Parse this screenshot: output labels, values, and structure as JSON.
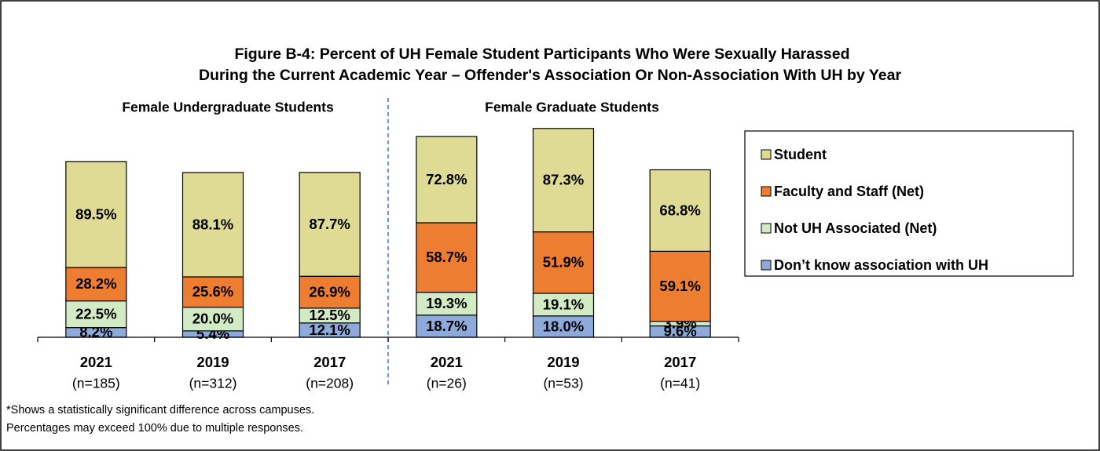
{
  "chart_data": {
    "type": "stacked_bar",
    "title": [
      "Figure B-4:  Percent of UH Female Student Participants Who Were Sexually Harassed",
      "During the Current Academic Year – Offender's Association Or Non-Association With UH by Year"
    ],
    "group_labels": [
      "Female Undergraduate Students",
      "Female Graduate Students"
    ],
    "categories": [
      "2021",
      "2019",
      "2017",
      "2021",
      "2019",
      "2017"
    ],
    "category_notes": [
      "(n=185)",
      "(n=312)",
      "(n=208)",
      "(n=26)",
      "(n=53)",
      "(n=41)"
    ],
    "series": [
      {
        "name": "Don’t know association with UH",
        "color": "#8eaadb",
        "values": [
          8.2,
          5.4,
          12.1,
          18.7,
          18.0,
          9.6
        ],
        "value_labels": [
          "8.2%",
          "5.4%",
          "12.1%",
          "18.7%",
          "18.0%",
          "9.6%"
        ]
      },
      {
        "name": "Not UH Associated (Net)",
        "color": "#d3ebc4",
        "values": [
          22.5,
          20.0,
          12.5,
          19.3,
          19.1,
          3.9
        ],
        "value_labels": [
          "22.5%",
          "20.0%",
          "12.5%",
          "19.3%",
          "19.1%",
          "3.9%"
        ]
      },
      {
        "name": "Faculty and Staff (Net)",
        "color": "#ed7d31",
        "values": [
          28.2,
          25.6,
          26.9,
          58.7,
          51.9,
          59.1
        ],
        "value_labels": [
          "28.2%",
          "25.6%",
          "26.9%",
          "58.7%",
          "51.9%",
          "59.1%"
        ]
      },
      {
        "name": "Student",
        "color": "#dfda94",
        "values": [
          89.5,
          88.1,
          87.7,
          72.8,
          87.3,
          68.8
        ],
        "value_labels": [
          "89.5%",
          "88.1%",
          "87.7%",
          "72.8%",
          "87.3%",
          "68.8%"
        ]
      }
    ],
    "footnotes": [
      "*Shows a statistically significant difference across campuses.",
      "Percentages may exceed 100% due to multiple responses."
    ]
  }
}
